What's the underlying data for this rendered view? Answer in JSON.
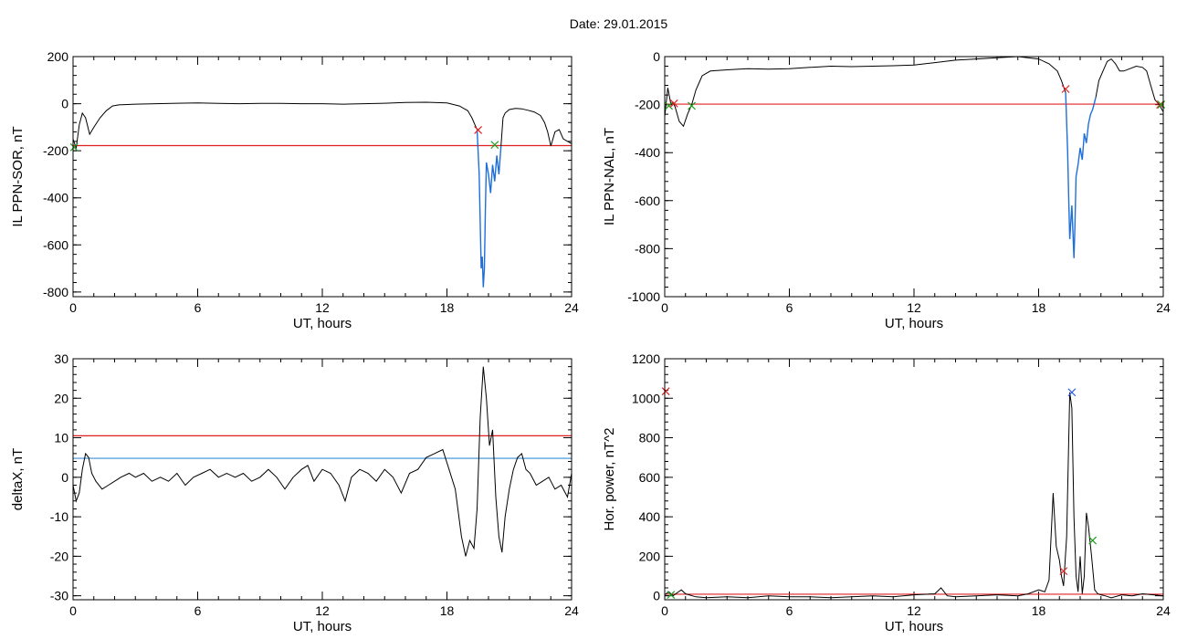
{
  "figure": {
    "title": "Date:  29.01.2015"
  },
  "colors": {
    "data": "#000000",
    "highlight": "#1f6fd8",
    "red_line": "#e02020",
    "blue_line": "#3a8fd8",
    "red_mark": "#e02020",
    "green_mark": "#20a020",
    "blue_mark": "#3060e0"
  },
  "chart_data": [
    {
      "id": "sor",
      "type": "line",
      "title": "",
      "xlabel": "UT, hours",
      "ylabel": "IL PPN-SOR, nT",
      "xlim": [
        0,
        24
      ],
      "ylim": [
        -820,
        200
      ],
      "xticks": [
        0,
        6,
        12,
        18,
        24
      ],
      "yticks": [
        -800,
        -600,
        -400,
        -200,
        0,
        200
      ],
      "series": [
        {
          "x": [
            0,
            0.15,
            0.3,
            0.45,
            0.6,
            0.8,
            1,
            1.3,
            1.6,
            1.9,
            2.2,
            3,
            4,
            5,
            6,
            7,
            8,
            9,
            10,
            11,
            12,
            13,
            14,
            15,
            16,
            17,
            18,
            18.6,
            19.0,
            19.2,
            19.35,
            19.45
          ],
          "y": [
            -150,
            -190,
            -90,
            -40,
            -60,
            -130,
            -100,
            -60,
            -30,
            -10,
            -5,
            -2,
            0,
            2,
            3,
            1,
            0,
            1,
            1,
            0,
            0,
            -2,
            0,
            2,
            5,
            6,
            3,
            -10,
            -30,
            -60,
            -90,
            -110
          ]
        },
        {
          "x": [
            19.45,
            19.55,
            19.6,
            19.65,
            19.7,
            19.75,
            19.8,
            19.85,
            19.9,
            20.0,
            20.1,
            20.2,
            20.3,
            20.4,
            20.5,
            20.6
          ],
          "y": [
            -110,
            -300,
            -500,
            -700,
            -650,
            -780,
            -700,
            -450,
            -250,
            -300,
            -380,
            -260,
            -330,
            -220,
            -300,
            -180
          ],
          "highlight": true
        },
        {
          "x": [
            20.6,
            20.7,
            20.8,
            21.0,
            21.3,
            21.6,
            21.9,
            22.2,
            22.5,
            22.7,
            22.85,
            23.0,
            23.2,
            23.4,
            23.6,
            23.8,
            24
          ],
          "y": [
            -180,
            -60,
            -40,
            -25,
            -20,
            -22,
            -28,
            -35,
            -50,
            -80,
            -120,
            -180,
            -120,
            -110,
            -150,
            -160,
            -170
          ]
        }
      ],
      "hlines": [
        {
          "y": -178,
          "color_key": "red_line"
        }
      ],
      "markers": [
        {
          "x": 19.5,
          "y": -112,
          "color_key": "red_mark"
        },
        {
          "x": 20.3,
          "y": -175,
          "color_key": "green_mark"
        },
        {
          "x": 0.05,
          "y": -185,
          "color_key": "green_mark"
        }
      ]
    },
    {
      "id": "nal",
      "type": "line",
      "title": "",
      "xlabel": "UT, hours",
      "ylabel": "IL PPN-NAL, nT",
      "xlim": [
        0,
        24
      ],
      "ylim": [
        -1000,
        0
      ],
      "xticks": [
        0,
        6,
        12,
        18,
        24
      ],
      "yticks": [
        -1000,
        -800,
        -600,
        -400,
        -200,
        0
      ],
      "series": [
        {
          "x": [
            0,
            0.15,
            0.3,
            0.4,
            0.5,
            0.7,
            0.9,
            1.1,
            1.3,
            1.5,
            1.8,
            2.2,
            3,
            4,
            5,
            6,
            7,
            8,
            9,
            10,
            11,
            12,
            13,
            14,
            15,
            16,
            17,
            18,
            18.5,
            18.9,
            19.1,
            19.3
          ],
          "y": [
            -250,
            -130,
            -200,
            -190,
            -210,
            -270,
            -290,
            -240,
            -200,
            -140,
            -80,
            -60,
            -55,
            -50,
            -52,
            -50,
            -45,
            -40,
            -42,
            -40,
            -38,
            -35,
            -25,
            -15,
            -10,
            -5,
            0,
            -10,
            -30,
            -60,
            -100,
            -150
          ]
        },
        {
          "x": [
            19.3,
            19.4,
            19.45,
            19.5,
            19.6,
            19.7,
            19.75,
            19.8,
            19.9,
            20.0,
            20.1,
            20.2,
            20.3,
            20.4,
            20.5,
            20.6,
            20.75
          ],
          "y": [
            -150,
            -400,
            -600,
            -760,
            -620,
            -840,
            -700,
            -500,
            -450,
            -380,
            -430,
            -320,
            -360,
            -280,
            -240,
            -220,
            -170
          ],
          "highlight": true
        },
        {
          "x": [
            20.75,
            20.9,
            21.1,
            21.3,
            21.5,
            21.7,
            21.9,
            22.1,
            22.4,
            22.7,
            23.0,
            23.2,
            23.4,
            23.6,
            23.8,
            24
          ],
          "y": [
            -170,
            -100,
            -60,
            -20,
            -10,
            -30,
            -60,
            -60,
            -50,
            -40,
            -45,
            -60,
            -120,
            -180,
            -200,
            -230
          ]
        }
      ],
      "hlines": [
        {
          "y": -198,
          "color_key": "red_line"
        }
      ],
      "markers": [
        {
          "x": 19.3,
          "y": -135,
          "color_key": "red_mark"
        },
        {
          "x": 0.2,
          "y": -205,
          "color_key": "green_mark"
        },
        {
          "x": 0.45,
          "y": -195,
          "color_key": "red_mark"
        },
        {
          "x": 1.3,
          "y": -205,
          "color_key": "green_mark"
        },
        {
          "x": 23.85,
          "y": -200,
          "color_key": "red_mark"
        },
        {
          "x": 23.9,
          "y": -200,
          "color_key": "green_mark"
        }
      ]
    },
    {
      "id": "deltax",
      "type": "line",
      "title": "",
      "xlabel": "UT, hours",
      "ylabel": "deltaX, nT",
      "xlim": [
        0,
        24
      ],
      "ylim": [
        -31,
        30
      ],
      "xticks": [
        0,
        6,
        12,
        18,
        24
      ],
      "yticks": [
        -30,
        -20,
        -10,
        0,
        10,
        20,
        30
      ],
      "series": [
        {
          "x": [
            0,
            0.15,
            0.3,
            0.45,
            0.6,
            0.75,
            0.9,
            1.1,
            1.4,
            1.7,
            2,
            2.3,
            2.7,
            3,
            3.4,
            3.8,
            4.2,
            4.6,
            5,
            5.4,
            5.8,
            6.2,
            6.6,
            7,
            7.4,
            7.8,
            8.2,
            8.6,
            9,
            9.4,
            9.8,
            10.2,
            10.6,
            11,
            11.3,
            11.6,
            12,
            12.4,
            12.8,
            13.1,
            13.4,
            13.8,
            14.2,
            14.6,
            15,
            15.4,
            15.8,
            16.2,
            16.6,
            17,
            17.4,
            17.8,
            18.1,
            18.4,
            18.7,
            18.9,
            19.1,
            19.3,
            19.45,
            19.6,
            19.75,
            19.9,
            20.05,
            20.2,
            20.35,
            20.5,
            20.65,
            20.8,
            21.0,
            21.2,
            21.4,
            21.6,
            21.8,
            22.0,
            22.3,
            22.6,
            22.9,
            23.2,
            23.5,
            23.8,
            24
          ],
          "y": [
            -2,
            -6,
            -4,
            2,
            6,
            5,
            1,
            -1,
            -3,
            -2,
            -1,
            0,
            1,
            0,
            1,
            -1,
            0,
            -1,
            1,
            -2,
            0,
            1,
            2,
            0,
            1,
            0,
            1,
            -1,
            0,
            2,
            0,
            -3,
            0,
            2,
            3,
            -1,
            2,
            1,
            -2,
            -6,
            0,
            2,
            1,
            -1,
            2,
            0,
            -4,
            1,
            2,
            5,
            6,
            7,
            2,
            -3,
            -15,
            -20,
            -16,
            -18,
            -8,
            15,
            28,
            20,
            8,
            12,
            -5,
            -15,
            -19,
            -10,
            -3,
            2,
            5,
            6,
            2,
            1,
            -2,
            -1,
            0,
            -3,
            -2,
            -5,
            1
          ]
        }
      ],
      "hlines": [
        {
          "y": 10.5,
          "color_key": "red_line"
        },
        {
          "y": 4.8,
          "color_key": "blue_line"
        }
      ],
      "markers": []
    },
    {
      "id": "power",
      "type": "line",
      "title": "",
      "xlabel": "UT, hours",
      "ylabel": "Hor. power, nT^2",
      "xlim": [
        0,
        24
      ],
      "ylim": [
        -20,
        1200
      ],
      "xticks": [
        0,
        6,
        12,
        18,
        24
      ],
      "yticks": [
        0,
        200,
        400,
        600,
        800,
        1000,
        1200
      ],
      "series": [
        {
          "x": [
            0,
            0.2,
            0.4,
            0.6,
            0.8,
            1,
            1.5,
            2,
            3,
            4,
            5,
            6,
            7,
            8,
            9,
            10,
            11,
            12,
            13,
            13.3,
            13.6,
            14,
            15,
            16,
            17,
            17.5,
            18,
            18.3,
            18.5,
            18.7,
            18.85,
            19.0,
            19.1,
            19.2,
            19.35,
            19.5,
            19.6,
            19.7,
            19.8,
            19.9,
            20.0,
            20.1,
            20.2,
            20.3,
            20.4,
            20.55,
            20.7,
            20.85,
            21.0,
            21.2,
            21.5,
            22,
            22.5,
            23,
            23.5,
            24
          ],
          "y": [
            5,
            20,
            0,
            15,
            30,
            10,
            -5,
            -10,
            -5,
            -10,
            0,
            -5,
            -5,
            -10,
            -5,
            0,
            -5,
            5,
            10,
            40,
            0,
            -5,
            0,
            5,
            0,
            10,
            30,
            20,
            80,
            520,
            250,
            180,
            100,
            50,
            300,
            1030,
            950,
            400,
            100,
            20,
            200,
            10,
            100,
            420,
            350,
            200,
            30,
            10,
            5,
            0,
            -10,
            5,
            0,
            10,
            5,
            0
          ]
        }
      ],
      "hlines": [
        {
          "y": 8,
          "color_key": "red_line"
        }
      ],
      "markers": [
        {
          "x": 0.05,
          "y": 1035,
          "color_key": "red_mark"
        },
        {
          "x": 0.3,
          "y": 5,
          "color_key": "green_mark"
        },
        {
          "x": 19.2,
          "y": 125,
          "color_key": "red_mark"
        },
        {
          "x": 19.6,
          "y": 1030,
          "color_key": "blue_mark"
        },
        {
          "x": 20.6,
          "y": 280,
          "color_key": "green_mark"
        }
      ]
    }
  ]
}
